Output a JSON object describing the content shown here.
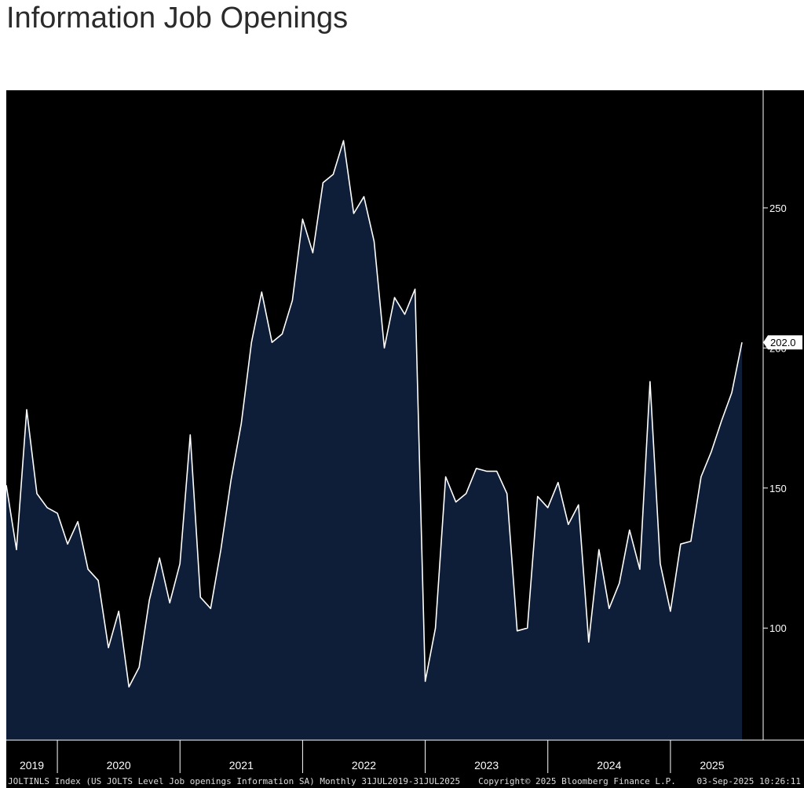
{
  "chart_data": {
    "type": "area",
    "title": "Information Job Openings",
    "series": [
      {
        "name": "JOLTINLS Index",
        "color": "#ffffff",
        "fill": "#0e1d38",
        "values": [
          151,
          128,
          178,
          148,
          143,
          141,
          130,
          138,
          121,
          117,
          93,
          106,
          79,
          86,
          110,
          125,
          109,
          123,
          169,
          111,
          107,
          128,
          153,
          173,
          202,
          220,
          202,
          205,
          217,
          246,
          234,
          259,
          262,
          274,
          248,
          254,
          238,
          200,
          218,
          212,
          221,
          81,
          100,
          154,
          145,
          148,
          157,
          156,
          156,
          148,
          99,
          100,
          147,
          143,
          152,
          137,
          144,
          95,
          128,
          107,
          116,
          135,
          121,
          188,
          123,
          106,
          130,
          131,
          154,
          163,
          174,
          184,
          202
        ],
        "value_labels": [
          null,
          null,
          null,
          null,
          null,
          null,
          null,
          null,
          null,
          null,
          null,
          null,
          null,
          null,
          null,
          null,
          null,
          null,
          null,
          null,
          null,
          null,
          null,
          null,
          null,
          null,
          null,
          null,
          null,
          null,
          null,
          null,
          null,
          null,
          null,
          null,
          null,
          null,
          null,
          null,
          null,
          null,
          null,
          null,
          null,
          null,
          null,
          null,
          null,
          null,
          null,
          null,
          null,
          null,
          null,
          null,
          null,
          null,
          null,
          null,
          null,
          null,
          null,
          null,
          null,
          null,
          null,
          null,
          null,
          null,
          null,
          null,
          "202.0"
        ]
      }
    ],
    "year_labels": [
      "2019",
      "2020",
      "2021",
      "2022",
      "2023",
      "2024",
      "2025"
    ],
    "ylim": [
      60,
      292
    ],
    "yticks": [
      100,
      150,
      200,
      250
    ],
    "footer": [
      "JOLTINLS Index (US JOLTS Level Job openings Information SA)  Monthly 31JUL2019-31JUL2025",
      "Copyright© 2025 Bloomberg Finance L.P.",
      "03-Sep-2025 10:26:11"
    ]
  }
}
